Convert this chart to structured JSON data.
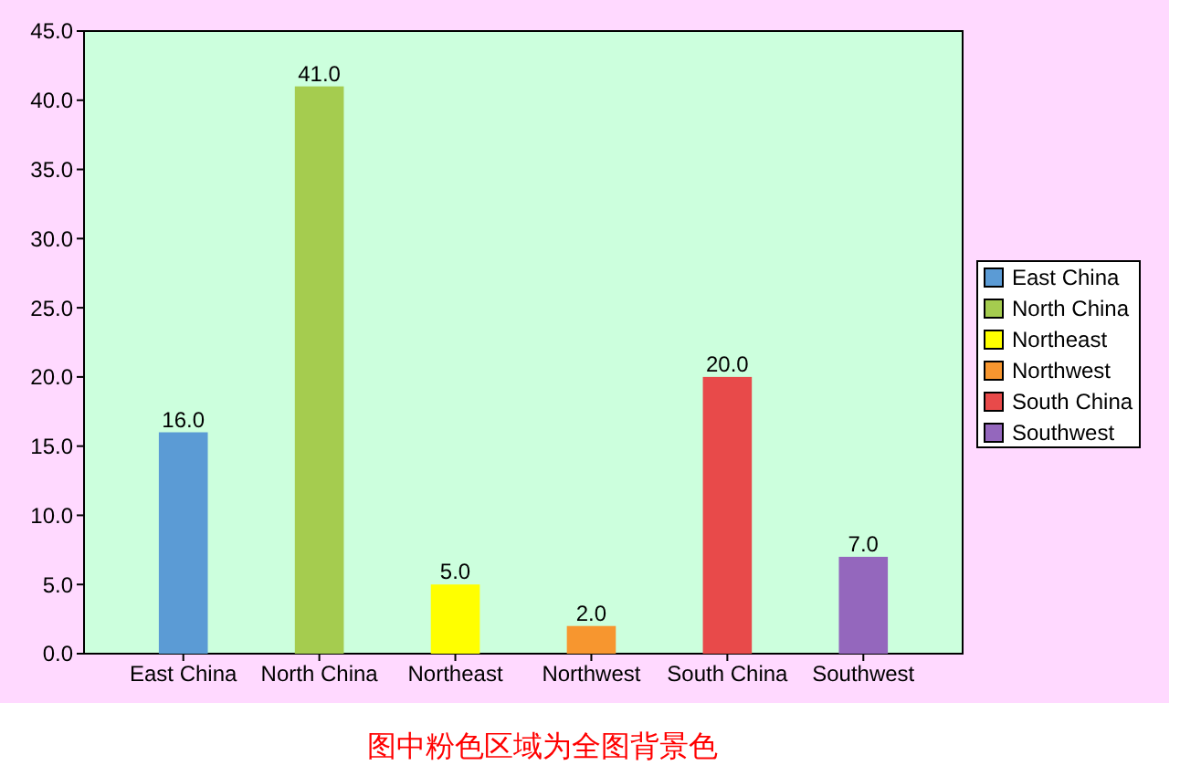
{
  "chart_data": {
    "type": "bar",
    "categories": [
      "East China",
      "North China",
      "Northeast",
      "Northwest",
      "South China",
      "Southwest"
    ],
    "series": [
      {
        "name": "East China",
        "color": "#5b9bd5",
        "values": [
          16,
          null,
          null,
          null,
          null,
          null
        ],
        "value_labels": [
          "16.0",
          null,
          null,
          null,
          null,
          null
        ]
      },
      {
        "name": "North China",
        "color": "#a5cc4f",
        "values": [
          null,
          41,
          null,
          null,
          null,
          null
        ],
        "value_labels": [
          null,
          "41.0",
          null,
          null,
          null,
          null
        ]
      },
      {
        "name": "Northeast",
        "color": "#ffff00",
        "values": [
          null,
          null,
          5,
          null,
          null,
          null
        ],
        "value_labels": [
          null,
          null,
          "5.0",
          null,
          null,
          null
        ]
      },
      {
        "name": "Northwest",
        "color": "#f7962f",
        "values": [
          null,
          null,
          null,
          2,
          null,
          null
        ],
        "value_labels": [
          null,
          null,
          null,
          "2.0",
          null,
          null
        ]
      },
      {
        "name": "South China",
        "color": "#e84a4a",
        "values": [
          null,
          null,
          null,
          null,
          20,
          null
        ],
        "value_labels": [
          null,
          null,
          null,
          null,
          "20.0",
          null
        ]
      },
      {
        "name": "Southwest",
        "color": "#9467bd",
        "values": [
          null,
          null,
          null,
          null,
          null,
          7
        ],
        "value_labels": [
          null,
          null,
          null,
          null,
          null,
          "7.0"
        ]
      }
    ],
    "ylim": [
      0,
      45
    ],
    "yticks": [
      {
        "value": 0,
        "label": "0.0"
      },
      {
        "value": 5,
        "label": "5.0"
      },
      {
        "value": 10,
        "label": "10.0"
      },
      {
        "value": 15,
        "label": "15.0"
      },
      {
        "value": 20,
        "label": "20.0"
      },
      {
        "value": 25,
        "label": "25.0"
      },
      {
        "value": 30,
        "label": "30.0"
      },
      {
        "value": 35,
        "label": "35.0"
      },
      {
        "value": 40,
        "label": "40.0"
      },
      {
        "value": 45,
        "label": "45.0"
      }
    ],
    "legend": "right",
    "annotations": [
      "图中粉色区域为全图背景色"
    ]
  }
}
